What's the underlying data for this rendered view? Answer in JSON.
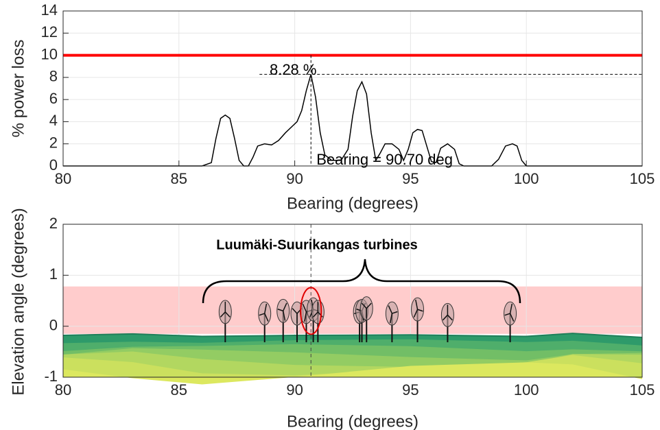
{
  "chart_data": [
    {
      "type": "line",
      "xlabel": "Bearing (degrees)",
      "ylabel": "% power loss",
      "x": [
        80,
        86,
        86.4,
        86.6,
        86.8,
        87,
        87.2,
        87.4,
        87.6,
        87.8,
        88,
        88.2,
        88.4,
        88.7,
        89,
        89.3,
        89.6,
        89.9,
        90.1,
        90.3,
        90.5,
        90.7,
        90.9,
        91.1,
        91.3,
        91.6,
        92,
        92.3,
        92.5,
        92.7,
        92.9,
        93.1,
        93.3,
        93.5,
        93.7,
        93.9,
        94.2,
        94.5,
        94.7,
        94.9,
        95.1,
        95.3,
        95.5,
        95.7,
        95.9,
        96.1,
        96.3,
        96.6,
        96.9,
        97.1,
        97.3,
        98.5,
        98.8,
        99.1,
        99.4,
        99.6,
        99.8,
        100,
        105
      ],
      "values": [
        0,
        0,
        0.3,
        2.5,
        4.3,
        4.6,
        4.3,
        2.5,
        0.5,
        0,
        0,
        0.8,
        1.8,
        2,
        1.9,
        2.3,
        3,
        3.6,
        4,
        5,
        6.8,
        8.28,
        6.2,
        3,
        1,
        0.5,
        0.5,
        1.5,
        4.5,
        6.8,
        7.6,
        6.5,
        3,
        0.5,
        1.2,
        2,
        2,
        1.5,
        0.5,
        1.5,
        3,
        3.3,
        3.2,
        1.8,
        0.4,
        0.3,
        1.6,
        2,
        1.5,
        0.2,
        0,
        0,
        0.6,
        1.8,
        2,
        1.8,
        0.5,
        0,
        0
      ],
      "color": "#000000",
      "threshold": {
        "value": 10,
        "color": "#ff0000"
      },
      "marker": {
        "x": 90.7,
        "y": 8.28,
        "y_label": "8.28 %",
        "x_label": "Bearing = 90.70 deg"
      },
      "xlim": [
        80,
        105
      ],
      "xticks": [
        80,
        85,
        90,
        95,
        100,
        105
      ],
      "ylim": [
        0,
        14
      ],
      "yticks": [
        0,
        2,
        4,
        6,
        8,
        10,
        12,
        14
      ],
      "grid": true
    },
    {
      "type": "elevation",
      "xlabel": "Bearing (degrees)",
      "ylabel": "Elevation angle (degrees)",
      "annotation": "Luumäki-Suurikangas turbines",
      "turbines": {
        "x": [
          87.0,
          88.7,
          89.5,
          90.1,
          90.5,
          90.8,
          91.0,
          92.8,
          92.9,
          93.1,
          94.2,
          95.3,
          96.6,
          99.3
        ],
        "values": [
          0.28,
          0.25,
          0.3,
          0.25,
          0.28,
          0.33,
          0.28,
          0.28,
          0.3,
          0.35,
          0.25,
          0.33,
          0.22,
          0.25
        ]
      },
      "highlight_x": 90.7,
      "band": [
        -0.15,
        0.78
      ],
      "band_color": "#ffcccc",
      "terrain": {
        "x": [
          80,
          83,
          86,
          90,
          95,
          100,
          102,
          105
        ],
        "values": [
          -0.18,
          -0.15,
          -0.2,
          -0.18,
          -0.17,
          -0.2,
          -0.14,
          -0.22
        ]
      },
      "xlim": [
        80,
        105
      ],
      "xticks": [
        80,
        85,
        90,
        95,
        100,
        105
      ],
      "ylim": [
        -1,
        2
      ],
      "yticks": [
        -1,
        0,
        1,
        2
      ],
      "grid": true
    }
  ]
}
